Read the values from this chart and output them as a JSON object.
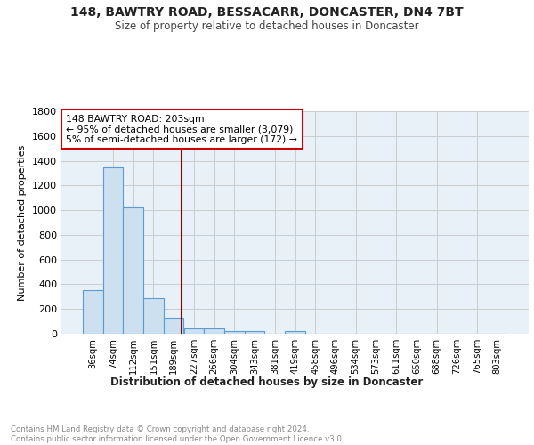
{
  "title": "148, BAWTRY ROAD, BESSACARR, DONCASTER, DN4 7BT",
  "subtitle": "Size of property relative to detached houses in Doncaster",
  "xlabel": "Distribution of detached houses by size in Doncaster",
  "ylabel": "Number of detached properties",
  "categories": [
    "36sqm",
    "74sqm",
    "112sqm",
    "151sqm",
    "189sqm",
    "227sqm",
    "266sqm",
    "304sqm",
    "343sqm",
    "381sqm",
    "419sqm",
    "458sqm",
    "496sqm",
    "534sqm",
    "573sqm",
    "611sqm",
    "650sqm",
    "688sqm",
    "726sqm",
    "765sqm",
    "803sqm"
  ],
  "values": [
    350,
    1350,
    1020,
    290,
    130,
    42,
    40,
    25,
    20,
    0,
    20,
    0,
    0,
    0,
    0,
    0,
    0,
    0,
    0,
    0,
    0
  ],
  "bar_color": "#cce0f0",
  "bar_edge_color": "#5b9bd5",
  "grid_color": "#cccccc",
  "background_color": "#e8f0f8",
  "annotation_text": "148 BAWTRY ROAD: 203sqm\n← 95% of detached houses are smaller (3,079)\n5% of semi-detached houses are larger (172) →",
  "annotation_box_color": "#ffffff",
  "annotation_border_color": "#cc0000",
  "footer_text": "Contains HM Land Registry data © Crown copyright and database right 2024.\nContains public sector information licensed under the Open Government Licence v3.0.",
  "ylim": [
    0,
    1800
  ],
  "yticks": [
    0,
    200,
    400,
    600,
    800,
    1000,
    1200,
    1400,
    1600,
    1800
  ]
}
